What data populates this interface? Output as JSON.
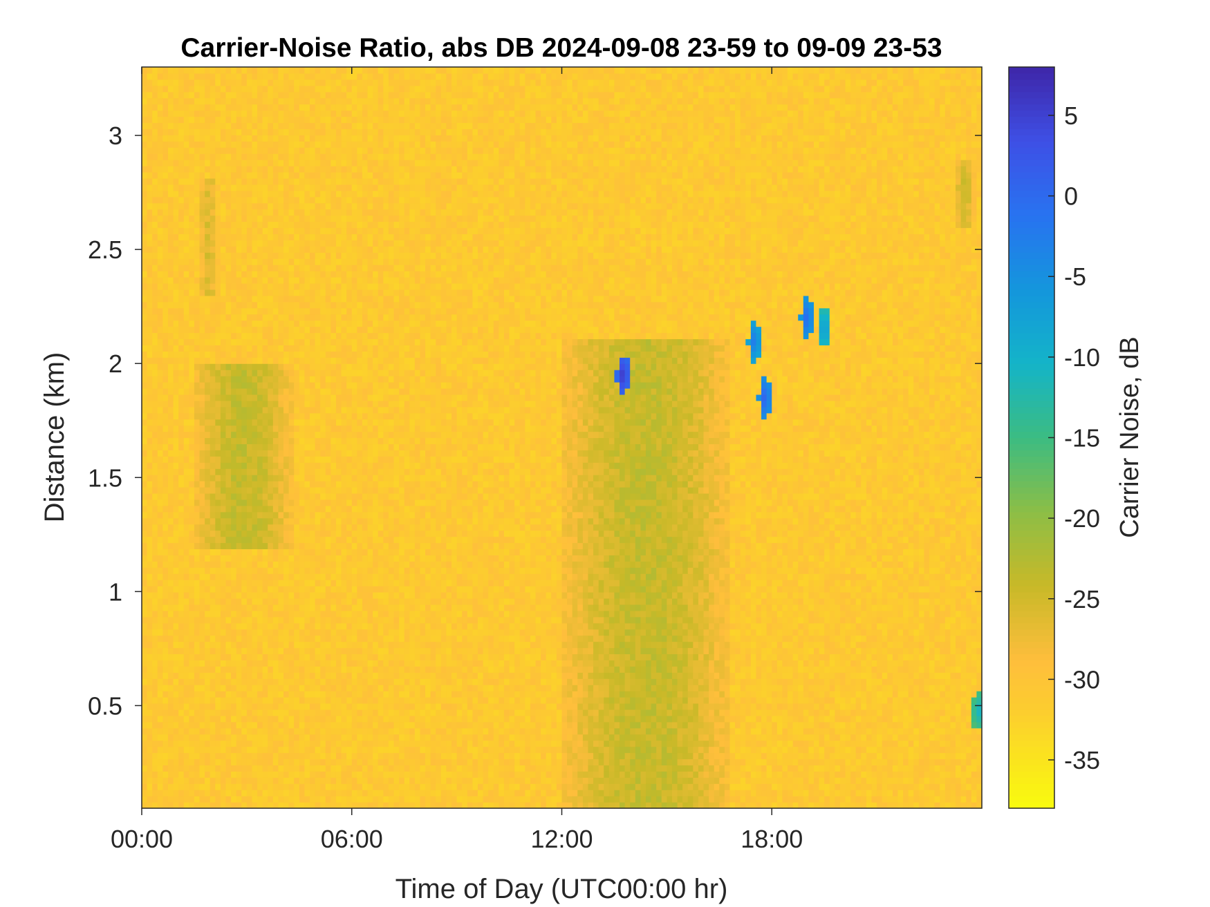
{
  "chart_data": {
    "type": "heatmap",
    "title": "Carrier-Noise Ratio, abs DB 2024-09-08 23-59 to 09-09 23-53",
    "xlabel": "Time of Day (UTC00:00 hr)",
    "ylabel": "Distance (km)",
    "xlim": [
      0,
      24
    ],
    "ylim": [
      0.05,
      3.3
    ],
    "x_ticks": [
      0,
      6,
      12,
      18
    ],
    "x_tick_labels": [
      "00:00",
      "06:00",
      "12:00",
      "18:00"
    ],
    "y_ticks": [
      0.5,
      1,
      1.5,
      2,
      2.5,
      3
    ],
    "y_tick_labels": [
      "0.5",
      "1",
      "1.5",
      "2",
      "2.5",
      "3"
    ],
    "grid": false,
    "colorbar": {
      "label": "Carrier Noise, dB",
      "clim": [
        -38,
        8
      ],
      "ticks": [
        5,
        0,
        -5,
        -10,
        -15,
        -20,
        -25,
        -30,
        -35
      ],
      "tick_labels": [
        "5",
        "0",
        "-5",
        "-10",
        "-15",
        "-20",
        "-25",
        "-30",
        "-35"
      ],
      "colormap": "parula-reversed"
    },
    "background_value_db": -31,
    "features": [
      {
        "kind": "weak-plume",
        "x_range": [
          1.5,
          4.3
        ],
        "y_range": [
          1.2,
          2.0
        ],
        "value_db": -24
      },
      {
        "kind": "weak-plume",
        "x_range": [
          1.6,
          2.2
        ],
        "y_range": [
          2.3,
          2.8
        ],
        "value_db": -26
      },
      {
        "kind": "weak-plume",
        "x_range": [
          12.0,
          16.8
        ],
        "y_range": [
          0.05,
          2.1
        ],
        "value_db": -24
      },
      {
        "kind": "weak-plume",
        "x_range": [
          23.2,
          23.8
        ],
        "y_range": [
          2.6,
          2.9
        ],
        "value_db": -25
      },
      {
        "kind": "strong-return",
        "x": 13.75,
        "y": 1.95,
        "value_db": 6
      },
      {
        "kind": "strong-return",
        "x": 17.5,
        "y": 2.1,
        "value_db": -2
      },
      {
        "kind": "strong-return",
        "x": 17.8,
        "y": 1.85,
        "value_db": 1
      },
      {
        "kind": "strong-return",
        "x": 19.0,
        "y": 2.2,
        "value_db": 0
      },
      {
        "kind": "strong-return",
        "x": 19.5,
        "y": 2.15,
        "value_db": -6
      },
      {
        "kind": "strong-return",
        "x": 23.9,
        "y": 0.48,
        "value_db": -10
      }
    ]
  }
}
